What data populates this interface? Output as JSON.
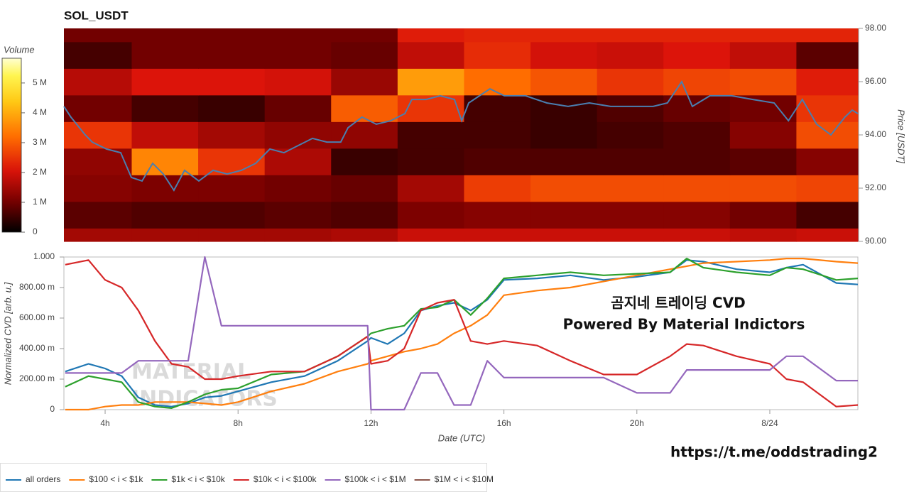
{
  "chart_data": [
    {
      "type": "heatmap",
      "title": "SOL_USDT",
      "xlim": [
        2.76,
        26.65
      ],
      "x_edges": [
        2.76,
        4.8,
        6.8,
        8.8,
        10.8,
        12.8,
        14.8,
        16.8,
        18.8,
        20.8,
        22.8,
        24.8,
        26.65
      ],
      "y_edges": [
        90,
        90.5,
        91.5,
        92.5,
        93.5,
        94.5,
        95.5,
        96.5,
        97.5,
        98
      ],
      "values": [
        [
          1500000,
          1500000,
          1500000,
          1500000,
          1600000,
          1900000,
          1900000,
          1900000,
          1900000,
          1900000,
          1800000,
          1900000
        ],
        [
          800000,
          700000,
          700000,
          800000,
          700000,
          1100000,
          1200000,
          1200000,
          1200000,
          1200000,
          1000000,
          600000
        ],
        [
          1200000,
          1100000,
          1100000,
          1000000,
          900000,
          1500000,
          2600000,
          2800000,
          2800000,
          2800000,
          2800000,
          2700000
        ],
        [
          1300000,
          3500000,
          2500000,
          1600000,
          500000,
          600000,
          700000,
          700000,
          700000,
          700000,
          800000,
          1200000
        ],
        [
          2500000,
          1800000,
          1500000,
          1300000,
          1300000,
          600000,
          600000,
          500000,
          600000,
          700000,
          1200000,
          2800000
        ],
        [
          1000000,
          600000,
          500000,
          900000,
          3000000,
          2500000,
          600000,
          500000,
          700000,
          900000,
          1000000,
          2500000
        ],
        [
          1700000,
          2100000,
          2100000,
          2000000,
          1400000,
          3800000,
          3200000,
          2900000,
          2500000,
          2700000,
          2800000,
          2200000
        ],
        [
          600000,
          1000000,
          1000000,
          1000000,
          900000,
          1800000,
          2400000,
          2000000,
          1900000,
          2100000,
          1800000,
          800000
        ],
        [
          1000000,
          1000000,
          1000000,
          1000000,
          1000000,
          2200000,
          2300000,
          2300000,
          2300000,
          2300000,
          2300000,
          2300000
        ]
      ],
      "zlim": [
        0,
        5830000
      ],
      "colorbar_label": "Volume",
      "colorbar_ticks": [
        0,
        {
          "value": 1000000,
          "label": "1 M"
        },
        {
          "value": 2000000,
          "label": "2 M"
        },
        {
          "value": 3000000,
          "label": "3 M"
        },
        {
          "value": 4000000,
          "label": "4 M"
        },
        {
          "value": 5000000,
          "label": "5 M"
        }
      ],
      "y2lim": [
        90,
        98
      ],
      "y2ticks": [
        {
          "value": 90,
          "label": "90.00"
        },
        {
          "value": 92,
          "label": "92.00"
        },
        {
          "value": 94,
          "label": "94.00"
        },
        {
          "value": 96,
          "label": "96.00"
        },
        {
          "value": 98,
          "label": "98.00"
        }
      ],
      "y2label": "Price [USDT]",
      "series": [
        {
          "color": "#4a7fb0",
          "axis": "y2",
          "x": [
            2.76,
            2.97,
            3.4,
            3.61,
            4.04,
            4.47,
            4.79,
            5.11,
            5.43,
            5.75,
            6.07,
            6.39,
            6.82,
            7.25,
            7.67,
            8.1,
            8.53,
            8.96,
            9.38,
            9.81,
            10.24,
            10.67,
            11.09,
            11.31,
            11.73,
            12.16,
            12.59,
            13.02,
            13.23,
            13.66,
            14.08,
            14.51,
            14.73,
            14.94,
            15.58,
            16.01,
            16.65,
            17.29,
            17.93,
            18.57,
            19.21,
            19.85,
            20.49,
            20.92,
            21.35,
            21.67,
            22.2,
            22.85,
            23.49,
            24.13,
            24.56,
            24.98,
            25.41,
            25.84,
            26.26,
            26.48,
            26.65
          ],
          "values": [
            95.07,
            94.67,
            94.0,
            93.73,
            93.47,
            93.33,
            92.4,
            92.27,
            92.93,
            92.53,
            91.92,
            92.67,
            92.27,
            92.67,
            92.53,
            92.67,
            92.93,
            93.47,
            93.33,
            93.6,
            93.87,
            93.73,
            93.73,
            94.27,
            94.67,
            94.4,
            94.53,
            94.8,
            95.33,
            95.33,
            95.47,
            95.33,
            94.53,
            95.2,
            95.73,
            95.47,
            95.47,
            95.2,
            95.07,
            95.2,
            95.07,
            95.07,
            95.07,
            95.2,
            96.0,
            95.07,
            95.47,
            95.47,
            95.33,
            95.2,
            94.53,
            95.33,
            94.4,
            94.0,
            94.67,
            94.93,
            94.8
          ]
        }
      ]
    },
    {
      "type": "line",
      "xlim": [
        2.76,
        26.65
      ],
      "x": [
        2.8,
        3.5,
        4,
        4.5,
        5,
        5.5,
        6,
        6.5,
        7,
        7.5,
        8,
        9,
        10,
        11,
        11.9,
        12,
        12.5,
        13,
        13.5,
        14,
        14.5,
        15,
        15.5,
        16,
        17,
        18,
        19,
        20,
        21,
        21.5,
        22,
        23,
        24,
        24.5,
        25,
        26,
        26.65
      ],
      "xticks": [
        {
          "value": 4,
          "label": "4h"
        },
        {
          "value": 8,
          "label": "8h"
        },
        {
          "value": 12,
          "label": "12h"
        },
        {
          "value": 16,
          "label": "16h"
        },
        {
          "value": 20,
          "label": "20h"
        },
        {
          "value": 24,
          "label": "8/24"
        }
      ],
      "xlabel": "Date (UTC)",
      "ylabel": "Normalized CVD [arb. u.]",
      "ylim": [
        0,
        1
      ],
      "yticks": [
        0,
        {
          "value": 0.2,
          "label": "200.00 m"
        },
        {
          "value": 0.4,
          "label": "400.00 m"
        },
        {
          "value": 0.6,
          "label": "600.00 m"
        },
        {
          "value": 0.8,
          "label": "800.00 m"
        },
        {
          "value": 1,
          "label": "1.000"
        }
      ],
      "series": [
        {
          "name": "all orders",
          "color": "#1f77b4",
          "values": [
            0.25,
            0.3,
            0.27,
            0.22,
            0.08,
            0.03,
            0.02,
            0.04,
            0.08,
            0.09,
            0.12,
            0.18,
            0.22,
            0.32,
            0.45,
            0.47,
            0.43,
            0.5,
            0.65,
            0.68,
            0.7,
            0.65,
            0.72,
            0.85,
            0.86,
            0.88,
            0.85,
            0.87,
            0.9,
            0.98,
            0.97,
            0.92,
            0.9,
            0.93,
            0.95,
            0.83,
            0.82
          ]
        },
        {
          "name": "$100 < i < $1k",
          "color": "#ff7f0e",
          "values": [
            0.0,
            0.0,
            0.02,
            0.03,
            0.03,
            0.05,
            0.05,
            0.05,
            0.04,
            0.03,
            0.05,
            0.12,
            0.17,
            0.25,
            0.3,
            0.32,
            0.35,
            0.38,
            0.4,
            0.43,
            0.5,
            0.55,
            0.62,
            0.75,
            0.78,
            0.8,
            0.84,
            0.88,
            0.92,
            0.94,
            0.96,
            0.97,
            0.98,
            0.99,
            0.99,
            0.97,
            0.96
          ]
        },
        {
          "name": "$1k < i < $10k",
          "color": "#2ca02c",
          "values": [
            0.15,
            0.22,
            0.2,
            0.18,
            0.05,
            0.02,
            0.01,
            0.05,
            0.1,
            0.13,
            0.14,
            0.23,
            0.25,
            0.35,
            0.48,
            0.5,
            0.53,
            0.55,
            0.66,
            0.67,
            0.72,
            0.62,
            0.73,
            0.86,
            0.88,
            0.9,
            0.88,
            0.89,
            0.9,
            0.99,
            0.93,
            0.9,
            0.88,
            0.93,
            0.92,
            0.85,
            0.86
          ]
        },
        {
          "name": "$10k < i < $100k",
          "color": "#d62728",
          "values": [
            0.95,
            0.98,
            0.85,
            0.8,
            0.65,
            0.45,
            0.3,
            0.28,
            0.2,
            0.2,
            0.22,
            0.25,
            0.25,
            0.35,
            0.48,
            0.3,
            0.32,
            0.4,
            0.65,
            0.7,
            0.72,
            0.45,
            0.43,
            0.45,
            0.42,
            0.32,
            0.23,
            0.23,
            0.35,
            0.43,
            0.42,
            0.35,
            0.3,
            0.2,
            0.18,
            0.02,
            0.03
          ]
        },
        {
          "name": "$100k < i < $1M",
          "color": "#9467bd",
          "values": [
            0.24,
            0.24,
            0.24,
            0.24,
            0.32,
            0.32,
            0.32,
            0.32,
            1.0,
            0.55,
            0.55,
            0.55,
            0.55,
            0.55,
            0.55,
            0.0,
            0.0,
            0.0,
            0.24,
            0.24,
            0.03,
            0.03,
            0.32,
            0.21,
            0.21,
            0.21,
            0.21,
            0.11,
            0.11,
            0.26,
            0.26,
            0.26,
            0.26,
            0.35,
            0.35,
            0.19,
            0.19
          ]
        },
        {
          "name": "$1M < i < $10M",
          "color": "#8c564b",
          "values": [
            null,
            null,
            null,
            null,
            null,
            null,
            null,
            null,
            null,
            null,
            null,
            null,
            null,
            null,
            null,
            null,
            null,
            null,
            null,
            null,
            null,
            null,
            null,
            null,
            null,
            null,
            null,
            null,
            null,
            null,
            null,
            null,
            null,
            null,
            null,
            null,
            null
          ]
        }
      ],
      "annotations": [
        "곰지네 트레이딩 CVD",
        "Powered By Material Indictors",
        "https://t.me/oddstrading2",
        "MATERIAL",
        "INDICATORS"
      ]
    }
  ]
}
